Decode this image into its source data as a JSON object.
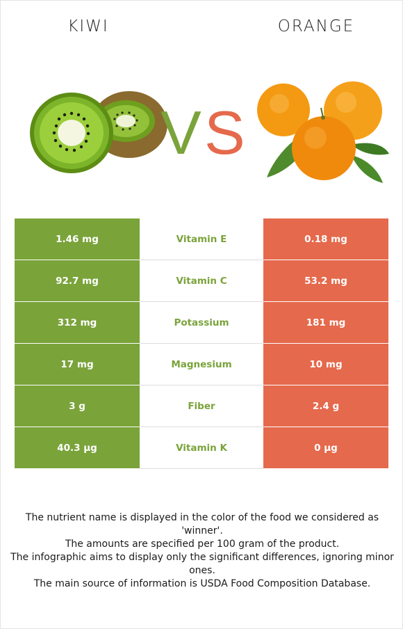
{
  "foods": {
    "left": {
      "name": "KIWI",
      "color": "#7aa33a"
    },
    "right": {
      "name": "ORANGE",
      "color": "#e5694c"
    }
  },
  "vs": {
    "v": "V",
    "s": "S"
  },
  "rows": [
    {
      "left": "1.46 mg",
      "nutrient": "Vitamin E",
      "right": "0.18 mg"
    },
    {
      "left": "92.7 mg",
      "nutrient": "Vitamin C",
      "right": "53.2 mg"
    },
    {
      "left": "312 mg",
      "nutrient": "Potassium",
      "right": "181 mg"
    },
    {
      "left": "17 mg",
      "nutrient": "Magnesium",
      "right": "10 mg"
    },
    {
      "left": "3 g",
      "nutrient": "Fiber",
      "right": "2.4 g"
    },
    {
      "left": "40.3 µg",
      "nutrient": "Vitamin K",
      "right": "0 µg"
    }
  ],
  "notes": [
    "The nutrient name is displayed in the color of the food we considered as 'winner'.",
    "The amounts are specified per 100 gram of the product.",
    "The infographic aims to display only the significant differences, ignoring minor ones.",
    "The main source of information is USDA Food Composition Database."
  ]
}
